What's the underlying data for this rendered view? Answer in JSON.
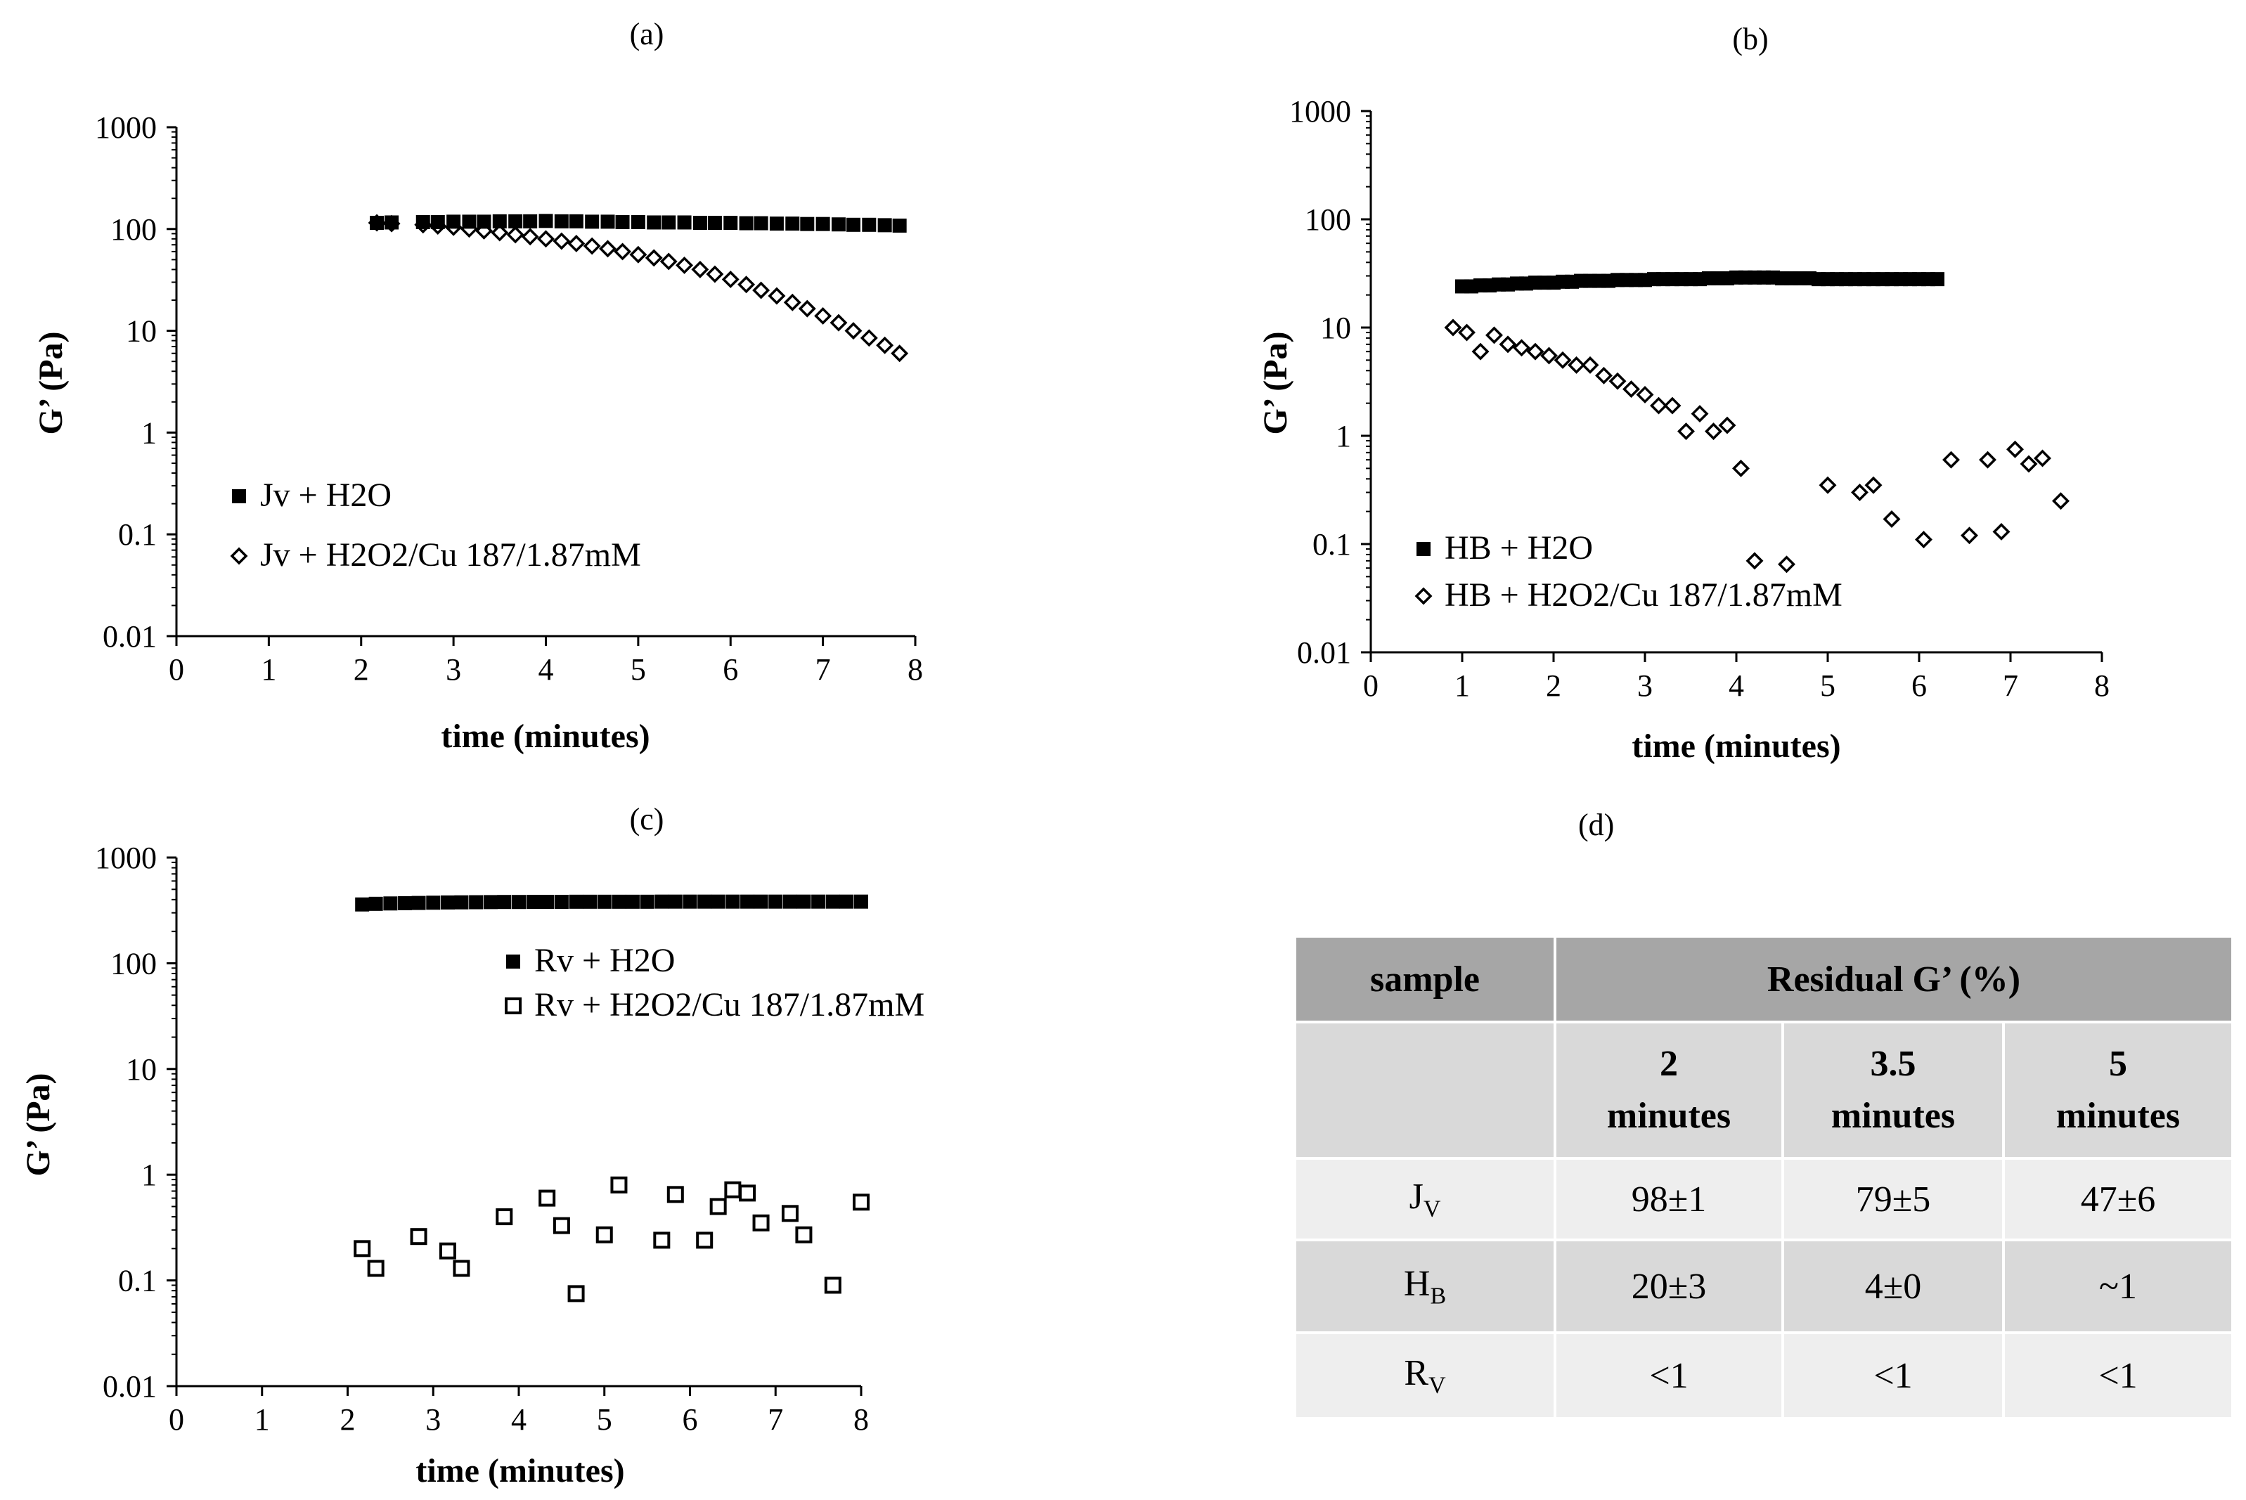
{
  "colors": {
    "marker": "#000000",
    "axis": "#000000",
    "header": "#a6a6a6",
    "subheader": "#d9d9d9"
  },
  "chart_data": [
    {
      "panel": "(a)",
      "type": "scatter",
      "yscale": "log",
      "xlabel": "time (minutes)",
      "ylabel": "G’ (Pa)",
      "xlim": [
        0,
        8
      ],
      "ylim": [
        0.01,
        1000
      ],
      "xticks": [
        "0",
        "1",
        "2",
        "3",
        "4",
        "5",
        "6",
        "7",
        "8"
      ],
      "yticks": [
        "0.01",
        "0.1",
        "1",
        "10",
        "100",
        "1000"
      ],
      "legend": "middle-left",
      "series": [
        {
          "name": "Jv + H2O",
          "marker": "filled-square",
          "x": [
            2.17,
            2.33,
            2.67,
            2.83,
            3.0,
            3.17,
            3.33,
            3.5,
            3.67,
            3.83,
            4.0,
            4.17,
            4.33,
            4.5,
            4.67,
            4.83,
            5.0,
            5.17,
            5.33,
            5.5,
            5.67,
            5.83,
            6.0,
            6.17,
            6.33,
            6.5,
            6.67,
            6.83,
            7.0,
            7.17,
            7.33,
            7.5,
            7.67,
            7.83
          ],
          "y": [
            115,
            116,
            117,
            117,
            118,
            118,
            118,
            119,
            119,
            119,
            120,
            119,
            119,
            118,
            118,
            117,
            117,
            116,
            116,
            116,
            115,
            115,
            115,
            114,
            114,
            113,
            113,
            112,
            112,
            111,
            110,
            110,
            109,
            108
          ]
        },
        {
          "name": "Jv + H2O2/Cu 187/1.87mM",
          "marker": "open-diamond",
          "x": [
            2.17,
            2.33,
            2.67,
            2.83,
            3.0,
            3.17,
            3.33,
            3.5,
            3.67,
            3.83,
            4.0,
            4.17,
            4.33,
            4.5,
            4.67,
            4.83,
            5.0,
            5.17,
            5.33,
            5.5,
            5.67,
            5.83,
            6.0,
            6.17,
            6.33,
            6.5,
            6.67,
            6.83,
            7.0,
            7.17,
            7.33,
            7.5,
            7.67,
            7.83
          ],
          "y": [
            115,
            113,
            110,
            107,
            104,
            100,
            96,
            92,
            88,
            84,
            80,
            76,
            72,
            68,
            64,
            60,
            56,
            52,
            48,
            44,
            40,
            36,
            32,
            28.5,
            25,
            22,
            19,
            16.5,
            14,
            12,
            10,
            8.5,
            7.2,
            6.0
          ]
        }
      ]
    },
    {
      "panel": "(b)",
      "type": "scatter",
      "yscale": "log",
      "xlabel": "time (minutes)",
      "ylabel": "G’ (Pa)",
      "xlim": [
        0,
        8
      ],
      "ylim": [
        0.01,
        1000
      ],
      "xticks": [
        "0",
        "1",
        "2",
        "3",
        "4",
        "5",
        "6",
        "7",
        "8"
      ],
      "yticks": [
        "0.01",
        "0.1",
        "1",
        "10",
        "100",
        "1000"
      ],
      "legend": "bottom-left",
      "series": [
        {
          "name": "HB + H2O",
          "marker": "filled-square",
          "x": [
            1.0,
            1.1,
            1.2,
            1.3,
            1.4,
            1.5,
            1.6,
            1.7,
            1.8,
            1.9,
            2.0,
            2.1,
            2.2,
            2.3,
            2.4,
            2.5,
            2.6,
            2.7,
            2.8,
            2.9,
            3.0,
            3.1,
            3.2,
            3.3,
            3.4,
            3.5,
            3.6,
            3.7,
            3.8,
            3.9,
            4.0,
            4.1,
            4.2,
            4.3,
            4.4,
            4.5,
            4.6,
            4.7,
            4.8,
            4.9,
            5.0,
            5.1,
            5.2,
            5.3,
            5.4,
            5.5,
            5.6,
            5.7,
            5.8,
            5.9,
            6.0,
            6.1,
            6.2
          ],
          "y": [
            24,
            24,
            24.5,
            24.5,
            25,
            25,
            25.5,
            25.5,
            26,
            26,
            26,
            26.5,
            26.5,
            27,
            27,
            27,
            27,
            27.5,
            27.5,
            27.5,
            27.5,
            28,
            28,
            28,
            28,
            28,
            28,
            28.5,
            28.5,
            28.5,
            29,
            29,
            29,
            29,
            29,
            28.5,
            28.5,
            28.5,
            28.5,
            28,
            28,
            28,
            28,
            28,
            28,
            28,
            28,
            28,
            28,
            28,
            28,
            28,
            28
          ]
        },
        {
          "name": "HB + H2O2/Cu 187/1.87mM",
          "marker": "open-diamond",
          "x": [
            0.9,
            1.05,
            1.2,
            1.35,
            1.5,
            1.65,
            1.8,
            1.95,
            2.1,
            2.25,
            2.4,
            2.55,
            2.7,
            2.85,
            3.0,
            3.15,
            3.3,
            3.45,
            3.6,
            3.75,
            3.9,
            4.05,
            4.2,
            4.55,
            5.0,
            5.35,
            5.5,
            5.7,
            6.05,
            6.35,
            6.55,
            6.75,
            6.9,
            7.05,
            7.2,
            7.35,
            7.55
          ],
          "y": [
            10,
            9,
            6,
            8.5,
            7,
            6.5,
            6,
            5.5,
            5,
            4.5,
            4.5,
            3.6,
            3.2,
            2.7,
            2.4,
            1.9,
            1.9,
            1.1,
            1.6,
            1.1,
            1.25,
            0.5,
            0.07,
            0.065,
            0.35,
            0.3,
            0.35,
            0.17,
            0.11,
            0.6,
            0.12,
            0.6,
            0.13,
            0.75,
            0.55,
            0.62,
            0.25
          ]
        }
      ]
    },
    {
      "panel": "(c)",
      "type": "scatter",
      "yscale": "log",
      "xlabel": "time (minutes)",
      "ylabel": "G’ (Pa)",
      "xlim": [
        0,
        8
      ],
      "ylim": [
        0.01,
        1000
      ],
      "xticks": [
        "0",
        "1",
        "2",
        "3",
        "4",
        "5",
        "6",
        "7",
        "8"
      ],
      "yticks": [
        "0.01",
        "0.1",
        "1",
        "10",
        "100",
        "1000"
      ],
      "legend": "top-center",
      "series": [
        {
          "name": "Rv + H2O",
          "marker": "filled-square",
          "x": [
            2.17,
            2.33,
            2.5,
            2.67,
            2.83,
            3.0,
            3.17,
            3.33,
            3.5,
            3.67,
            3.83,
            4.0,
            4.17,
            4.33,
            4.5,
            4.67,
            4.83,
            5.0,
            5.17,
            5.33,
            5.5,
            5.67,
            5.83,
            6.0,
            6.17,
            6.33,
            6.5,
            6.67,
            6.83,
            7.0,
            7.17,
            7.33,
            7.5,
            7.67,
            7.83,
            8.0
          ],
          "y": [
            360,
            365,
            368,
            370,
            372,
            374,
            376,
            377,
            378,
            379,
            380,
            380,
            381,
            381,
            381,
            382,
            382,
            382,
            382,
            382,
            382,
            383,
            383,
            383,
            383,
            383,
            383,
            383,
            383,
            383,
            383,
            383,
            383,
            383,
            383,
            383
          ]
        },
        {
          "name": "Rv + H2O2/Cu 187/1.87mM",
          "marker": "open-square",
          "x": [
            2.17,
            2.33,
            2.83,
            3.17,
            3.33,
            3.83,
            4.33,
            4.5,
            4.67,
            5.0,
            5.17,
            5.67,
            5.83,
            6.17,
            6.33,
            6.5,
            6.67,
            6.83,
            7.17,
            7.33,
            7.67,
            8.0
          ],
          "y": [
            0.2,
            0.13,
            0.26,
            0.19,
            0.13,
            0.4,
            0.6,
            0.33,
            0.075,
            0.27,
            0.8,
            0.24,
            0.65,
            0.24,
            0.5,
            0.72,
            0.67,
            0.35,
            0.43,
            0.27,
            0.09,
            0.55
          ]
        }
      ]
    },
    {
      "panel": "(d)",
      "type": "table",
      "header": {
        "sample": "sample",
        "residual": "Residual G’ (%)"
      },
      "subheader": [
        {
          "value": "2",
          "unit": "minutes"
        },
        {
          "value": "3.5",
          "unit": "minutes"
        },
        {
          "value": "5",
          "unit": "minutes"
        }
      ],
      "rows": [
        {
          "base": "J",
          "sub": "V",
          "cells": [
            "98±1",
            "79±5",
            "47±6"
          ]
        },
        {
          "base": "H",
          "sub": "B",
          "cells": [
            "20±3",
            "4±0",
            "~1"
          ]
        },
        {
          "base": "R",
          "sub": "V",
          "cells": [
            "<1",
            "<1",
            "<1"
          ]
        }
      ]
    }
  ]
}
